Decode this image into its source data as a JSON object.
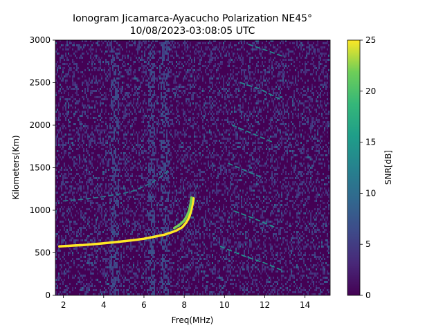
{
  "chart_data": {
    "type": "heatmap",
    "title_line1": "Ionogram Jicamarca-Ayacucho Polarization NE45°",
    "title_line2": "10/08/2023-03:08:05 UTC",
    "xlabel": "Freq(MHz)",
    "ylabel": "Kilometers(Km)",
    "colorbar_label": "SNR[dB]",
    "xlim": [
      1.6,
      15.25
    ],
    "ylim": [
      0,
      3000
    ],
    "clim": [
      0,
      25
    ],
    "colormap": "viridis",
    "x_ticks": [
      2,
      4,
      6,
      8,
      10,
      12,
      14
    ],
    "x_tick_labels": [
      "2",
      "4",
      "6",
      "8",
      "10",
      "12",
      "14"
    ],
    "y_ticks": [
      0,
      500,
      1000,
      1500,
      2000,
      2500,
      3000
    ],
    "y_tick_labels": [
      "0",
      "500",
      "1000",
      "1500",
      "2000",
      "2500",
      "3000"
    ],
    "colorbar_ticks": [
      0,
      5,
      10,
      15,
      20,
      25
    ],
    "colorbar_tick_labels": [
      "0",
      "5",
      "10",
      "15",
      "20",
      "25"
    ],
    "traces": [
      {
        "name": "F-layer trace (1-hop)",
        "snr": 25,
        "points": [
          [
            1.8,
            575
          ],
          [
            2.5,
            585
          ],
          [
            3.0,
            592
          ],
          [
            3.5,
            602
          ],
          [
            4.0,
            612
          ],
          [
            4.5,
            624
          ],
          [
            5.0,
            636
          ],
          [
            5.5,
            650
          ],
          [
            6.0,
            665
          ],
          [
            6.5,
            688
          ],
          [
            7.0,
            712
          ],
          [
            7.3,
            735
          ],
          [
            7.6,
            760
          ],
          [
            7.9,
            800
          ],
          [
            8.1,
            855
          ],
          [
            8.25,
            920
          ],
          [
            8.35,
            1000
          ],
          [
            8.42,
            1080
          ],
          [
            8.46,
            1140
          ]
        ]
      },
      {
        "name": "F-layer trace (1-hop, offset)",
        "snr": 22,
        "points": [
          [
            7.5,
            790
          ],
          [
            7.8,
            835
          ],
          [
            8.0,
            880
          ],
          [
            8.15,
            940
          ],
          [
            8.25,
            1000
          ],
          [
            8.32,
            1080
          ],
          [
            8.36,
            1150
          ]
        ]
      },
      {
        "name": "F-layer trace (2-hop)",
        "snr": 11,
        "points": [
          [
            2.0,
            1110
          ],
          [
            3.0,
            1130
          ],
          [
            4.0,
            1160
          ],
          [
            5.0,
            1200
          ],
          [
            5.5,
            1230
          ],
          [
            6.0,
            1280
          ],
          [
            6.5,
            1340
          ],
          [
            7.0,
            1420
          ],
          [
            7.3,
            1500
          ]
        ]
      },
      {
        "name": "Oblique streak 1",
        "snr": 14,
        "points": [
          [
            9.8,
            575
          ],
          [
            11.0,
            460
          ],
          [
            12.0,
            380
          ],
          [
            12.8,
            300
          ]
        ]
      },
      {
        "name": "Oblique streak 2",
        "snr": 14,
        "points": [
          [
            10.5,
            990
          ],
          [
            11.5,
            900
          ],
          [
            12.5,
            800
          ]
        ]
      },
      {
        "name": "Oblique streak 3",
        "snr": 13,
        "points": [
          [
            10.2,
            1550
          ],
          [
            11.0,
            1470
          ],
          [
            11.8,
            1390
          ]
        ]
      },
      {
        "name": "Oblique streak 4",
        "snr": 13,
        "points": [
          [
            10.4,
            2000
          ],
          [
            11.4,
            1900
          ],
          [
            12.4,
            1800
          ]
        ]
      },
      {
        "name": "Oblique streak 5",
        "snr": 13,
        "points": [
          [
            10.8,
            2500
          ],
          [
            11.8,
            2420
          ],
          [
            12.8,
            2300
          ]
        ]
      },
      {
        "name": "Oblique streak 6",
        "snr": 13,
        "points": [
          [
            11.2,
            2950
          ],
          [
            12.2,
            2870
          ],
          [
            13.0,
            2800
          ]
        ]
      }
    ],
    "interference_bands_mhz": [
      [
        4.3,
        4.7
      ],
      [
        6.2,
        6.5
      ],
      [
        6.8,
        7.2
      ]
    ]
  }
}
